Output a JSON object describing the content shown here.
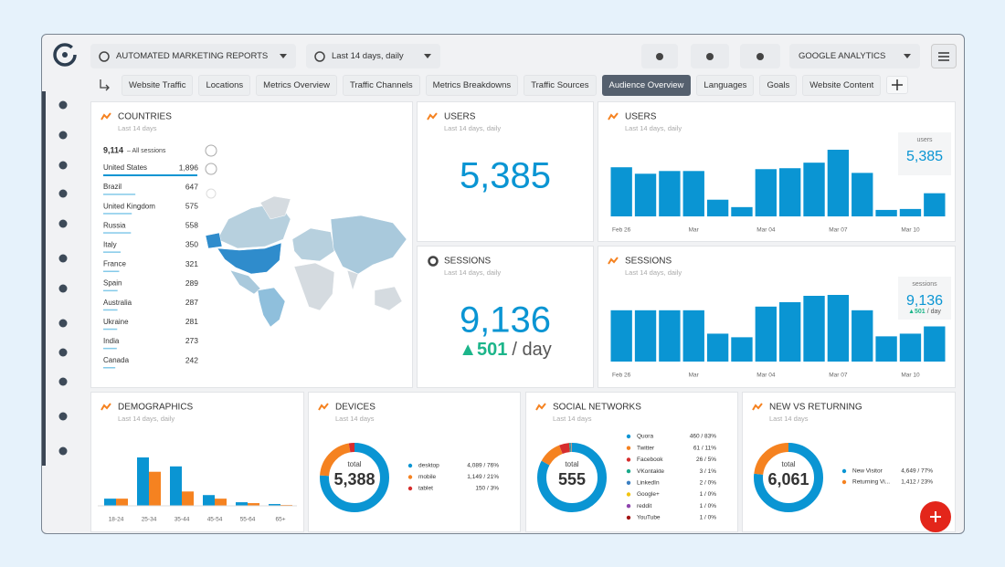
{
  "toolbar": {
    "report": "AUTOMATED MARKETING REPORTS",
    "date_range": "Last 14 days, daily",
    "source": "GOOGLE ANALYTICS"
  },
  "tabs": [
    "Website Traffic",
    "Locations",
    "Metrics Overview",
    "Traffic Channels",
    "Metrics Breakdowns",
    "Traffic Sources",
    "Audience Overview",
    "Languages",
    "Goals",
    "Website Content"
  ],
  "active_tab": 6,
  "countries": {
    "title": "COUNTRIES",
    "subtitle": "Last 14 days",
    "total": "9,114",
    "total_label": "– All sessions",
    "color": "#0a95d3",
    "categories": [
      "United States",
      "Brazil",
      "United Kingdom",
      "Russia",
      "Italy",
      "France",
      "Spain",
      "Australia",
      "Ukraine",
      "India",
      "Canada"
    ],
    "values": [
      1896,
      647,
      575,
      558,
      350,
      321,
      289,
      287,
      281,
      273,
      242
    ],
    "value_labels": [
      "1,896",
      "647",
      "575",
      "558",
      "350",
      "321",
      "289",
      "287",
      "281",
      "273",
      "242"
    ]
  },
  "users_kpi": {
    "title": "USERS",
    "subtitle": "Last 14 days, daily",
    "value": "5,385"
  },
  "sessions_kpi": {
    "title": "SESSIONS",
    "subtitle": "Last 14 days, daily",
    "value": "9,136",
    "change": "▲501",
    "unit": "/ day"
  },
  "users_chart": {
    "type": "bar",
    "title": "USERS",
    "subtitle": "Last 14 days, daily",
    "legend_label": "users",
    "legend_value": "5,385",
    "color": "#0a95d3",
    "categories": [
      "Feb 26",
      null,
      null,
      "Mar",
      null,
      null,
      "Mar 04",
      null,
      null,
      "Mar 07",
      null,
      null,
      "Mar 10",
      null
    ],
    "values": [
      524,
      455,
      484,
      484,
      178,
      99,
      504,
      514,
      573,
      711,
      464,
      69,
      79,
      247
    ]
  },
  "sessions_chart": {
    "type": "bar",
    "title": "SESSIONS",
    "subtitle": "Last 14 days, daily",
    "legend_label": "sessions",
    "legend_value": "9,136",
    "legend_change": "▲501",
    "legend_unit": "/ day",
    "color": "#0a95d3",
    "categories": [
      "Feb 26",
      null,
      null,
      "Mar",
      null,
      null,
      "Mar 04",
      null,
      null,
      "Mar 07",
      null,
      null,
      "Mar 10",
      null
    ],
    "values": [
      728,
      728,
      728,
      728,
      396,
      345,
      780,
      843,
      933,
      946,
      728,
      358,
      396,
      499
    ]
  },
  "demographics": {
    "type": "bar",
    "title": "DEMOGRAPHICS",
    "subtitle": "Last 14 days, daily",
    "categories": [
      "18-24",
      "25-34",
      "35-44",
      "45-54",
      "55-64",
      "65+"
    ],
    "series": [
      {
        "color": "#0a95d3",
        "values": [
          4,
          27,
          22,
          6,
          2,
          1
        ]
      },
      {
        "color": "#f58220",
        "values": [
          4,
          19,
          8,
          4,
          1.5,
          0.5
        ]
      }
    ]
  },
  "devices": {
    "type": "pie",
    "title": "DEVICES",
    "subtitle": "Last 14 days",
    "total_label": "total",
    "total": "5,388",
    "categories": [
      "desktop",
      "mobile",
      "tablet"
    ],
    "values": [
      4089,
      1149,
      150
    ],
    "value_labels": [
      "4,089 / 76%",
      "1,149 / 21%",
      "150 / 3%"
    ],
    "colors": [
      "#0a95d3",
      "#f58220",
      "#d62d2d"
    ]
  },
  "social": {
    "type": "pie",
    "title": "SOCIAL NETWORKS",
    "subtitle": "Last 14 days",
    "total_label": "total",
    "total": "555",
    "categories": [
      "Quora",
      "Twitter",
      "Facebook",
      "VKontakte",
      "LinkedIn",
      "Google+",
      "reddit",
      "YouTube"
    ],
    "values": [
      460,
      61,
      26,
      3,
      2,
      1,
      1,
      1
    ],
    "value_labels": [
      "460 / 83%",
      "61 / 11%",
      "26 / 5%",
      "3 / 1%",
      "2 / 0%",
      "1 / 0%",
      "1 / 0%",
      "1 / 0%"
    ],
    "colors": [
      "#0a95d3",
      "#f58220",
      "#d62d2d",
      "#1aa98a",
      "#3a7fc1",
      "#f2c40f",
      "#8e44ad",
      "#a31515"
    ]
  },
  "new_returning": {
    "type": "pie",
    "title": "NEW VS RETURNING",
    "subtitle": "Last 14 days",
    "total_label": "total",
    "total": "6,061",
    "categories": [
      "New Visitor",
      "Returning Vi..."
    ],
    "values": [
      4649,
      1412
    ],
    "value_labels": [
      "4,649 / 77%",
      "1,412 / 23%"
    ],
    "colors": [
      "#0a95d3",
      "#f58220"
    ]
  }
}
